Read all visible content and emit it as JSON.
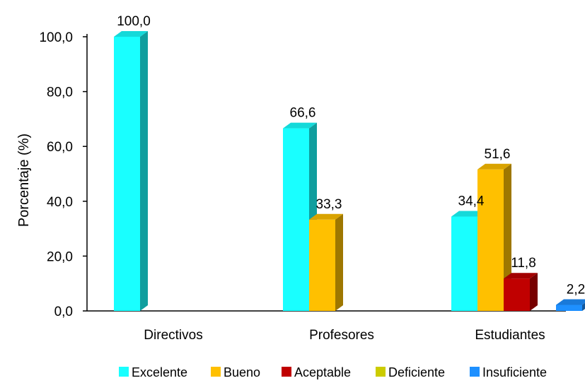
{
  "chart_data": {
    "type": "bar",
    "ylabel": "Porcentaje (%)",
    "categories": [
      "Directivos",
      "Profesores",
      "Estudiantes"
    ],
    "ylim": [
      0,
      100
    ],
    "yticks": [
      "0,0",
      "20,0",
      "40,0",
      "60,0",
      "80,0",
      "100,0"
    ],
    "series": [
      {
        "name": "Excelente",
        "color": "#19FFFF",
        "values": [
          100.0,
          66.6,
          34.4
        ],
        "labels": [
          "100,0",
          "66,6",
          "34,4"
        ]
      },
      {
        "name": "Bueno",
        "color": "#FFC000",
        "values": [
          null,
          33.3,
          51.6
        ],
        "labels": [
          "",
          "33,3",
          "51,6"
        ]
      },
      {
        "name": "Aceptable",
        "color": "#C00000",
        "values": [
          null,
          null,
          11.8
        ],
        "labels": [
          "",
          "",
          "11,8"
        ]
      },
      {
        "name": "Deficiente",
        "color": "#CCCC00",
        "values": [
          null,
          null,
          null
        ],
        "labels": [
          "",
          "",
          ""
        ]
      },
      {
        "name": "Insuficiente",
        "color": "#1E90FF",
        "values": [
          null,
          null,
          2.2
        ],
        "labels": [
          "",
          "",
          "2,2"
        ]
      }
    ],
    "style": "3d-bars",
    "grid": false,
    "legend_position": "bottom"
  }
}
